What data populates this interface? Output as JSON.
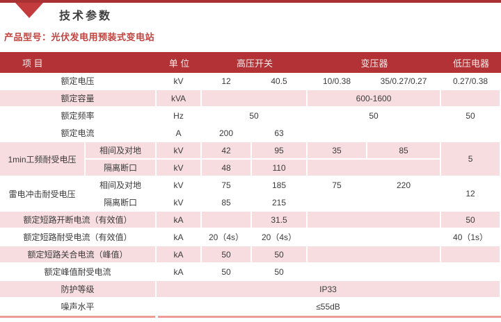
{
  "page": {
    "section_title": "技术参数",
    "product_line": "产品型号：光伏发电用预装式变电站"
  },
  "colors": {
    "top_bar": "#a93134",
    "marker_triangle": "#c43b3e",
    "table_header_bg": "#b23236",
    "table_header_text": "#f7ecec",
    "row_pink": "#f8dde0",
    "product_text": "#c0433f",
    "bottom_line": "#ee9d95"
  },
  "table": {
    "header": {
      "item": "项 目",
      "unit": "单 位",
      "hv_switch": "高压开关",
      "transformer": "变压器",
      "lv_apparatus": "低压电器"
    },
    "rows": [
      {
        "bg": "w",
        "cells": [
          {
            "t": "额定电压",
            "cs": 2,
            "a": "lbl"
          },
          {
            "t": "kV"
          },
          {
            "t": "12"
          },
          {
            "t": "40.5"
          },
          {
            "t": "10/0.38"
          },
          {
            "t": "35/0.27/0.27"
          },
          {
            "t": "0.27/0.38"
          }
        ]
      },
      {
        "bg": "p",
        "cells": [
          {
            "t": "额定容量",
            "cs": 2,
            "a": "lbl"
          },
          {
            "t": "kVA"
          },
          {
            "t": "",
            "cs": 2
          },
          {
            "t": "600-1600",
            "cs": 2
          },
          {
            "t": ""
          }
        ]
      },
      {
        "bg": "w",
        "cells": [
          {
            "t": "额定频率",
            "cs": 2,
            "a": "lbl"
          },
          {
            "t": "Hz"
          },
          {
            "t": "50",
            "cs": 2
          },
          {
            "t": "50",
            "cs": 2
          },
          {
            "t": "50"
          }
        ]
      },
      {
        "bg": "w",
        "cells": [
          {
            "t": "额定电流",
            "cs": 2,
            "a": "lbl"
          },
          {
            "t": "A"
          },
          {
            "t": "200"
          },
          {
            "t": "63"
          },
          {
            "t": "",
            "cs": 2
          },
          {
            "t": ""
          }
        ]
      },
      {
        "bg": "p",
        "cells": [
          {
            "t": "1min工频耐受电压",
            "rs": 2,
            "a": "lbl"
          },
          {
            "t": "相间及对地",
            "a": "sub"
          },
          {
            "t": "kV"
          },
          {
            "t": "42"
          },
          {
            "t": "95"
          },
          {
            "t": "35"
          },
          {
            "t": "85"
          },
          {
            "t": "5",
            "rs": 2
          }
        ]
      },
      {
        "bg": "p",
        "cells": [
          {
            "t": "隔离断口",
            "a": "sub"
          },
          {
            "t": "kV"
          },
          {
            "t": "48"
          },
          {
            "t": "110"
          },
          {
            "t": "",
            "cs": 2
          }
        ]
      },
      {
        "bg": "w",
        "cells": [
          {
            "t": "雷电冲击耐受电压",
            "rs": 2,
            "a": "lbl"
          },
          {
            "t": "相间及对地",
            "a": "sub"
          },
          {
            "t": "kV"
          },
          {
            "t": "75"
          },
          {
            "t": "185"
          },
          {
            "t": "75"
          },
          {
            "t": "220"
          },
          {
            "t": "12",
            "rs": 2
          }
        ]
      },
      {
        "bg": "w",
        "cells": [
          {
            "t": "隔离断口",
            "a": "sub"
          },
          {
            "t": "kV"
          },
          {
            "t": "85"
          },
          {
            "t": "215"
          },
          {
            "t": "",
            "cs": 2
          }
        ]
      },
      {
        "bg": "p",
        "cells": [
          {
            "t": "额定短路开断电流（有效值）",
            "cs": 2,
            "a": "lbl"
          },
          {
            "t": "kA"
          },
          {
            "t": ""
          },
          {
            "t": "31.5"
          },
          {
            "t": "",
            "cs": 2
          },
          {
            "t": "50"
          }
        ]
      },
      {
        "bg": "w",
        "cells": [
          {
            "t": "额定短路耐受电流（有效值）",
            "cs": 2,
            "a": "lbl"
          },
          {
            "t": "kA"
          },
          {
            "t": "20（4s）"
          },
          {
            "t": "20（4s）"
          },
          {
            "t": "",
            "cs": 2
          },
          {
            "t": "40（1s）"
          }
        ]
      },
      {
        "bg": "p",
        "cells": [
          {
            "t": "额定短路关合电流（峰值）",
            "cs": 2,
            "a": "lbl"
          },
          {
            "t": "kA"
          },
          {
            "t": "50"
          },
          {
            "t": "50"
          },
          {
            "t": "",
            "cs": 2
          },
          {
            "t": ""
          }
        ]
      },
      {
        "bg": "w",
        "cells": [
          {
            "t": "额定峰值耐受电流",
            "cs": 2,
            "a": "lbl"
          },
          {
            "t": "kA"
          },
          {
            "t": "50"
          },
          {
            "t": "50"
          },
          {
            "t": "",
            "cs": 2
          },
          {
            "t": ""
          }
        ]
      },
      {
        "bg": "p",
        "cells": [
          {
            "t": "防护等级",
            "cs": 2,
            "a": "lbl"
          },
          {
            "t": "IP33",
            "cs": 6
          }
        ]
      },
      {
        "bg": "w",
        "cells": [
          {
            "t": "噪声水平",
            "cs": 2,
            "a": "lbl"
          },
          {
            "t": "≤55dB",
            "cs": 6
          }
        ]
      }
    ]
  }
}
